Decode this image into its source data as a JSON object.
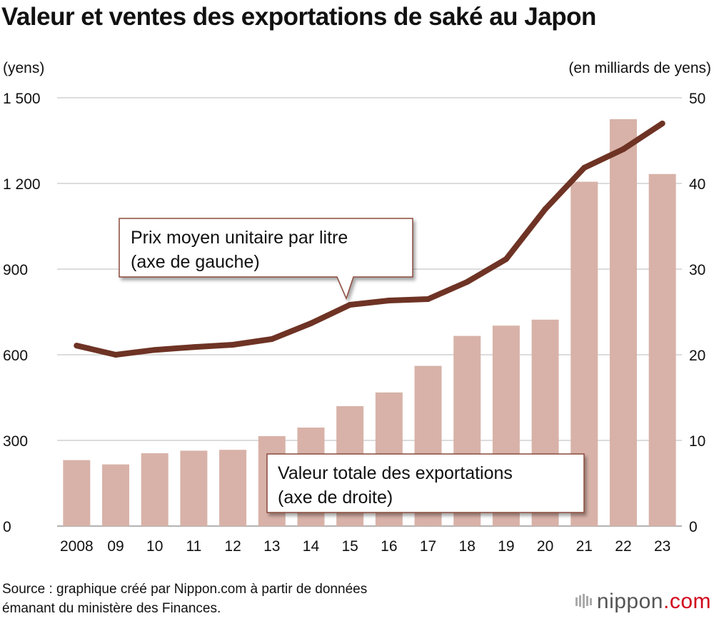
{
  "header": {
    "title": "Valeur et ventes des exportations de saké au Japon",
    "left_unit": "(yens)",
    "right_unit": "(en milliards de yens)"
  },
  "chart_data": {
    "type": "bar+line",
    "title": "Valeur et ventes des exportations de saké au Japon",
    "categories": [
      "2008",
      "09",
      "10",
      "11",
      "12",
      "13",
      "14",
      "15",
      "16",
      "17",
      "18",
      "19",
      "20",
      "21",
      "22",
      "23"
    ],
    "left_axis": {
      "label": "(yens)",
      "range": [
        0,
        1500
      ],
      "ticks": [
        0,
        300,
        600,
        900,
        1200,
        1500
      ],
      "tick_labels": [
        "0",
        "300",
        "600",
        "900",
        "1 200",
        "1 500"
      ]
    },
    "right_axis": {
      "label": "(en milliards de yens)",
      "range": [
        0,
        50
      ],
      "ticks": [
        0,
        10,
        20,
        30,
        40,
        50
      ],
      "tick_labels": [
        "0",
        "10",
        "20",
        "30",
        "40",
        "50"
      ]
    },
    "grid": true,
    "series": [
      {
        "name": "Valeur totale des exportations",
        "axis_note": "(axe de droite)",
        "type": "bar",
        "axis": "right",
        "color": "#d8b2a8",
        "values": [
          7.7,
          7.2,
          8.5,
          8.8,
          8.9,
          10.5,
          11.5,
          14.0,
          15.6,
          18.7,
          22.2,
          23.4,
          24.1,
          40.2,
          47.5,
          41.1
        ]
      },
      {
        "name": "Prix moyen unitaire par litre",
        "axis_note": "(axe de gauche)",
        "type": "line",
        "axis": "left",
        "color": "#6e3324",
        "values": [
          632,
          600,
          617,
          627,
          635,
          655,
          710,
          775,
          790,
          795,
          855,
          935,
          1110,
          1255,
          1320,
          1410
        ]
      }
    ]
  },
  "callouts": {
    "line_label": [
      "Prix moyen unitaire par litre",
      "(axe de gauche)"
    ],
    "bar_label": [
      "Valeur totale des exportations",
      "(axe de droite)"
    ]
  },
  "footer": {
    "source_line1": "Source : graphique créé par Nippon.com à partir de données",
    "source_line2": "émanant du ministère des Finances.",
    "brand": "nippon",
    "brand_suffix": ".com"
  },
  "colors": {
    "bar": "#d8b2a8",
    "line": "#6e3324",
    "grid": "#c8c8c8",
    "brand_dot": "#d0021b"
  }
}
